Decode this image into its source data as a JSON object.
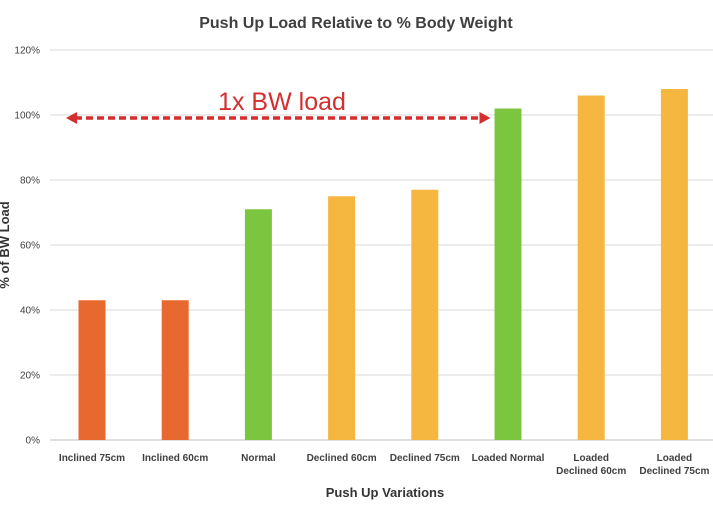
{
  "chart_data": {
    "type": "bar",
    "title": "Push Up Load Relative to % Body Weight",
    "xlabel": "Push Up Variations",
    "ylabel": "% of BW Load",
    "ylim": [
      0,
      120
    ],
    "yticks": [
      "0%",
      "20%",
      "40%",
      "60%",
      "80%",
      "100%",
      "120%"
    ],
    "grid": true,
    "categories": [
      [
        "Inclined 75cm"
      ],
      [
        "Inclined 60cm"
      ],
      [
        "Normal"
      ],
      [
        "Declined 60cm"
      ],
      [
        "Declined 75cm"
      ],
      [
        "Loaded Normal"
      ],
      [
        "Loaded",
        "Declined 60cm"
      ],
      [
        "Loaded",
        "Declined 75cm"
      ]
    ],
    "values": [
      43,
      43,
      71,
      75,
      77,
      102,
      106,
      108
    ],
    "bar_colors": [
      "#e8692f",
      "#e8692f",
      "#7cc63f",
      "#f6b740",
      "#f6b740",
      "#7cc63f",
      "#f6b740",
      "#f6b740"
    ],
    "annotation": {
      "text": "1x BW load",
      "y_value": 100,
      "from_category": 0,
      "to_category": 5,
      "color": "#d32f2f"
    }
  }
}
